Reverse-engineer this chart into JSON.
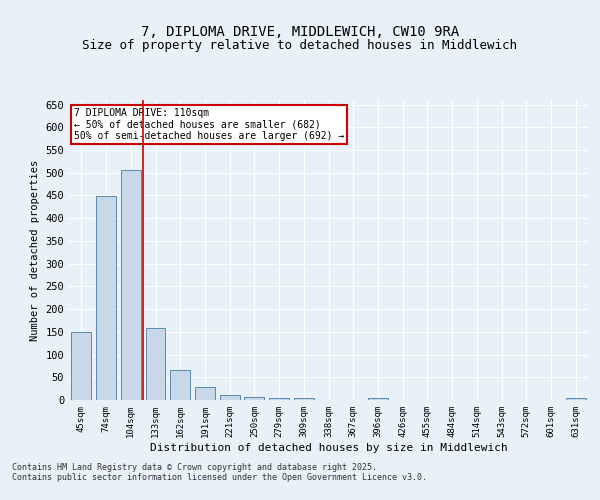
{
  "title_line1": "7, DIPLOMA DRIVE, MIDDLEWICH, CW10 9RA",
  "title_line2": "Size of property relative to detached houses in Middlewich",
  "xlabel": "Distribution of detached houses by size in Middlewich",
  "ylabel": "Number of detached properties",
  "categories": [
    "45sqm",
    "74sqm",
    "104sqm",
    "133sqm",
    "162sqm",
    "191sqm",
    "221sqm",
    "250sqm",
    "279sqm",
    "309sqm",
    "338sqm",
    "367sqm",
    "396sqm",
    "426sqm",
    "455sqm",
    "484sqm",
    "514sqm",
    "543sqm",
    "572sqm",
    "601sqm",
    "631sqm"
  ],
  "values": [
    150,
    448,
    507,
    158,
    65,
    28,
    12,
    7,
    5,
    4,
    0,
    0,
    5,
    0,
    0,
    0,
    0,
    0,
    0,
    0,
    5
  ],
  "bar_color": "#c8d8e8",
  "bar_edge_color": "#5b8ab0",
  "redline_x": 2.5,
  "annotation_text": "7 DIPLOMA DRIVE: 110sqm\n← 50% of detached houses are smaller (682)\n50% of semi-detached houses are larger (692) →",
  "annotation_box_color": "#ffffff",
  "annotation_box_edge": "#cc0000",
  "redline_color": "#cc0000",
  "footer_text": "Contains HM Land Registry data © Crown copyright and database right 2025.\nContains public sector information licensed under the Open Government Licence v3.0.",
  "background_color": "#e8f0f8",
  "plot_background": "#e8f0f8",
  "ylim": [
    0,
    660
  ],
  "yticks": [
    0,
    50,
    100,
    150,
    200,
    250,
    300,
    350,
    400,
    450,
    500,
    550,
    600,
    650
  ],
  "grid_color": "#ffffff",
  "title_fontsize": 10,
  "subtitle_fontsize": 9
}
